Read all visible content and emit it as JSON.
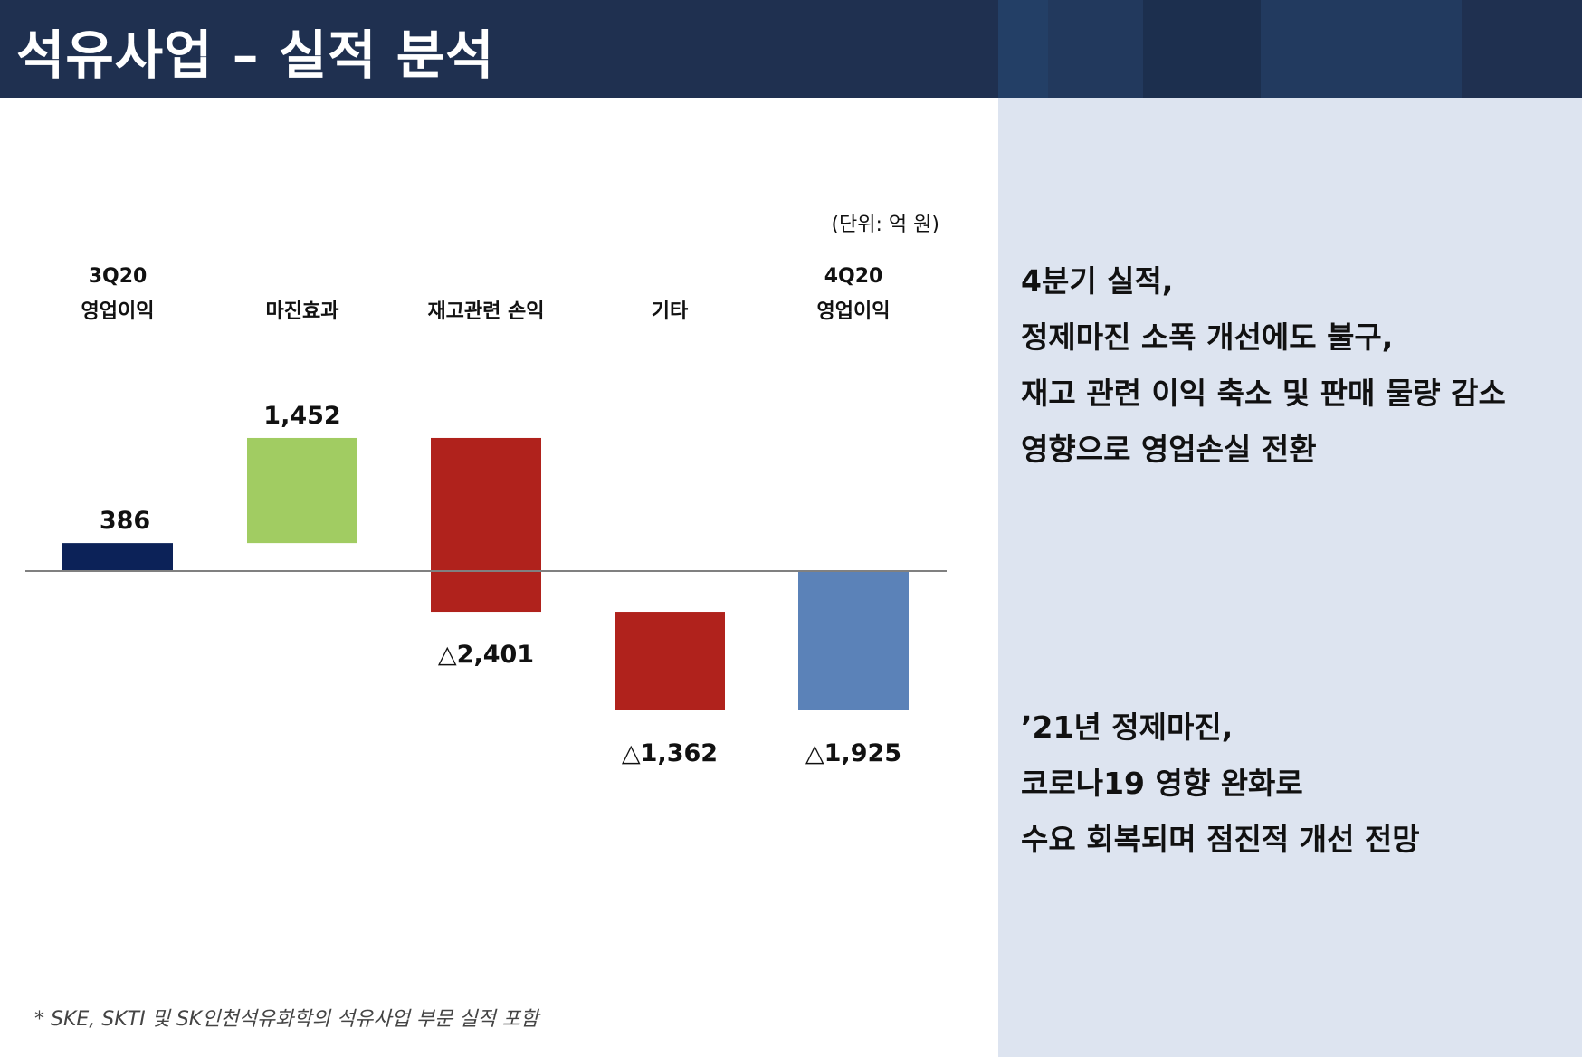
{
  "header": {
    "title": "석유사업 – 실적 분석",
    "background": "#1f3050",
    "decor_colors": [
      "#233f66",
      "#22395d",
      "#223a5f",
      "#1f3050"
    ]
  },
  "chart_data": {
    "type": "bar",
    "subtype": "waterfall",
    "unit_label": "(단위: 억 원)",
    "categories": [
      [
        "3Q20",
        "영업이익"
      ],
      [
        "마진효과"
      ],
      [
        "재고관련 손익"
      ],
      [
        "기타"
      ],
      [
        "4Q20",
        "영업이익"
      ]
    ],
    "values": [
      386,
      1452,
      -2401,
      -1362,
      -1925
    ],
    "value_labels": [
      "386",
      "1,452",
      "△2,401",
      "△1,362",
      "△1,925"
    ],
    "bar_kinds": [
      "total",
      "delta",
      "delta",
      "delta",
      "total"
    ],
    "colors": [
      "#0c2258",
      "#a1cc62",
      "#b0221c",
      "#b0221c",
      "#5b82b8"
    ],
    "baseline_color": "#808080",
    "ylim": [
      -2300,
      2700
    ]
  },
  "summary": {
    "block1": [
      "4분기 실적,",
      "정제마진 소폭 개선에도 불구,",
      "재고 관련 이익 축소 및 판매 물량 감소",
      "영향으로 영업손실 전환"
    ],
    "block2": [
      "’21년 정제마진,",
      "코로나19 영향 완화로",
      "수요 회복되며 점진적 개선 전망"
    ]
  },
  "footnote": "* SKE, SKTI 및 SK인천석유화학의 석유사업 부문 실적 포함",
  "colors": {
    "right_panel": "#dde4f0"
  }
}
